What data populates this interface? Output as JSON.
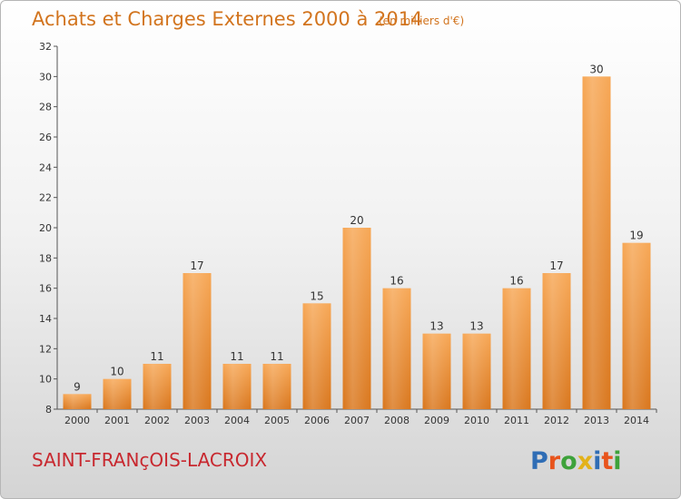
{
  "chart_data": {
    "type": "bar",
    "title": "Achats et Charges Externes 2000 à 2014",
    "subtitle": "(en milliers d'€)",
    "categories": [
      "2000",
      "2001",
      "2002",
      "2003",
      "2004",
      "2005",
      "2006",
      "2007",
      "2008",
      "2009",
      "2010",
      "2011",
      "2012",
      "2013",
      "2014"
    ],
    "values": [
      9,
      10,
      11,
      17,
      11,
      11,
      15,
      20,
      16,
      13,
      13,
      16,
      17,
      30,
      19
    ],
    "ylim": [
      8,
      32
    ],
    "yticks": [
      8,
      10,
      12,
      14,
      16,
      18,
      20,
      22,
      24,
      26,
      28,
      30,
      32
    ],
    "xlabel": "",
    "ylabel": "",
    "grid": false,
    "bar_color_top": "#f7a755",
    "bar_color_bottom": "#d9761c"
  },
  "footer": {
    "place": "SAINT-FRANçOIS-LACROIX",
    "logo_text": "Proxiti",
    "place_color": "#c8282f"
  }
}
